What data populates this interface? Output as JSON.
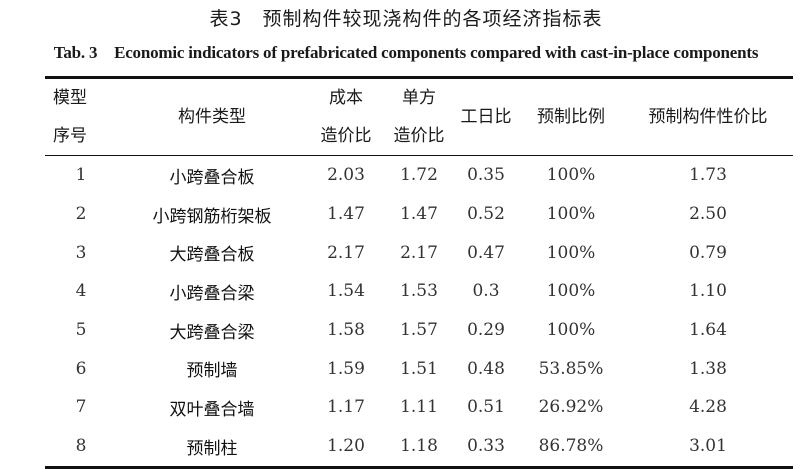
{
  "title": "表3　预制构件较现浇构件的各项经济指标表",
  "subtitle": "Tab. 3　Economic indicators of prefabricated components compared with cast-in-place components",
  "columns": [
    {
      "line1": "模型",
      "line2": "序号"
    },
    {
      "line1": "构件类型",
      "line2": ""
    },
    {
      "line1": "成本",
      "line2": "造价比"
    },
    {
      "line1": "单方",
      "line2": "造价比"
    },
    {
      "line1": "工日比",
      "line2": ""
    },
    {
      "line1": "预制比例",
      "line2": ""
    },
    {
      "line1": "预制构件性价比",
      "line2": ""
    }
  ],
  "rows": [
    [
      "1",
      "小跨叠合板",
      "2.03",
      "1.72",
      "0.35",
      "100%",
      "1.73"
    ],
    [
      "2",
      "小跨钢筋桁架板",
      "1.47",
      "1.47",
      "0.52",
      "100%",
      "2.50"
    ],
    [
      "3",
      "大跨叠合板",
      "2.17",
      "2.17",
      "0.47",
      "100%",
      "0.79"
    ],
    [
      "4",
      "小跨叠合梁",
      "1.54",
      "1.53",
      "0.3",
      "100%",
      "1.10"
    ],
    [
      "5",
      "大跨叠合梁",
      "1.58",
      "1.57",
      "0.29",
      "100%",
      "1.64"
    ],
    [
      "6",
      "预制墙",
      "1.59",
      "1.51",
      "0.48",
      "53.85%",
      "1.38"
    ],
    [
      "7",
      "双叶叠合墙",
      "1.17",
      "1.11",
      "0.51",
      "26.92%",
      "4.28"
    ],
    [
      "8",
      "预制柱",
      "1.20",
      "1.18",
      "0.33",
      "86.78%",
      "3.01"
    ]
  ]
}
